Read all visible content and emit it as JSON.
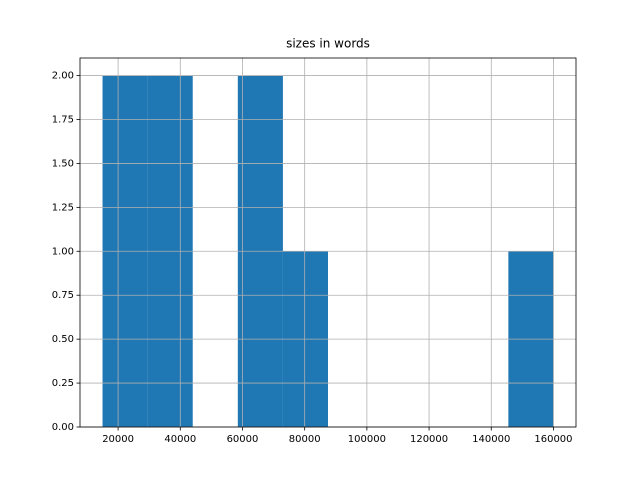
{
  "chart_data": {
    "type": "histogram",
    "title": "sizes in words",
    "bins": [
      15000,
      29500,
      44000,
      58500,
      73000,
      87500,
      102000,
      116500,
      131000,
      145500,
      160000
    ],
    "counts": [
      2,
      2,
      0,
      2,
      1,
      0,
      0,
      0,
      0,
      1
    ],
    "color": "#1f77b4",
    "xlim": [
      7750,
      167250
    ],
    "xticks": [
      20000,
      40000,
      60000,
      80000,
      100000,
      120000,
      140000,
      160000
    ],
    "ylim": [
      0,
      2.1
    ],
    "yticks": [
      {
        "value": 0,
        "label": "0.00"
      },
      {
        "value": 0.25,
        "label": "0.25"
      },
      {
        "value": 0.5,
        "label": "0.50"
      },
      {
        "value": 0.75,
        "label": "0.75"
      },
      {
        "value": 1,
        "label": "1.00"
      },
      {
        "value": 1.25,
        "label": "1.25"
      },
      {
        "value": 1.5,
        "label": "1.50"
      },
      {
        "value": 1.75,
        "label": "1.75"
      },
      {
        "value": 2,
        "label": "2.00"
      }
    ],
    "grid": true
  }
}
